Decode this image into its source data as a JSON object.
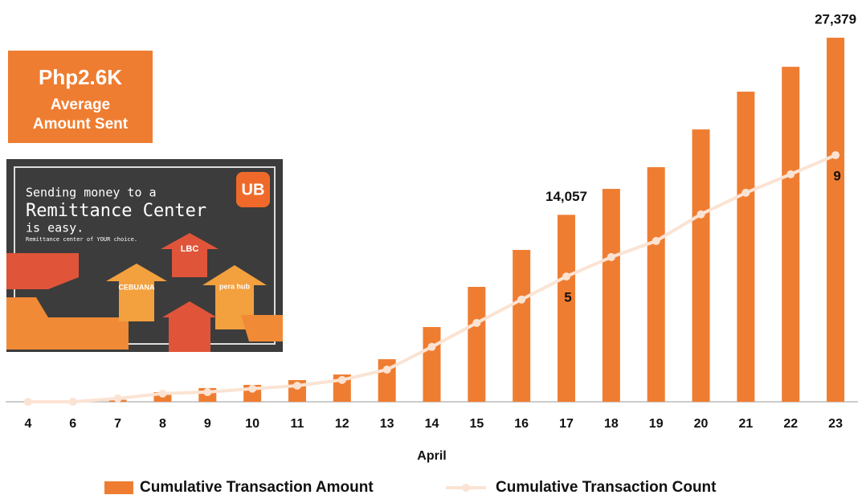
{
  "chart_data": {
    "type": "bar",
    "categories": [
      "4",
      "6",
      "7",
      "8",
      "9",
      "10",
      "11",
      "12",
      "13",
      "14",
      "15",
      "16",
      "17",
      "18",
      "19",
      "20",
      "21",
      "22",
      "23"
    ],
    "xlabel": "April",
    "series": [
      {
        "name": "Cumulative Transaction Amount",
        "color": "#ef7d31",
        "type": "bar",
        "values": [
          0,
          0,
          150,
          725,
          1030,
          1270,
          1630,
          2050,
          3200,
          5620,
          8640,
          11420,
          14057,
          16010,
          17640,
          20480,
          23320,
          25190,
          27379
        ],
        "value_labels": [
          null,
          null,
          null,
          null,
          null,
          null,
          null,
          null,
          null,
          null,
          null,
          null,
          "14,057",
          null,
          null,
          null,
          null,
          null,
          "27,379"
        ]
      },
      {
        "name": "Cumulative Transaction Count",
        "color": "#fbe3d3",
        "type": "line",
        "axis": "y2",
        "values": [
          0.87,
          0.87,
          0.98,
          1.14,
          1.19,
          1.3,
          1.4,
          1.59,
          1.93,
          2.68,
          3.47,
          4.24,
          5,
          5.64,
          6.17,
          7.05,
          7.76,
          8.37,
          9
        ],
        "value_labels": [
          null,
          null,
          null,
          null,
          null,
          null,
          null,
          null,
          null,
          null,
          null,
          null,
          "5",
          null,
          null,
          null,
          null,
          null,
          "9"
        ]
      }
    ],
    "ylim": [
      0,
      28400
    ],
    "y2lim": [
      0.87,
      13.32
    ],
    "legend": "bottom"
  },
  "badge": {
    "amount": "Php2.6K",
    "line1": "Average",
    "line2": "Amount Sent"
  },
  "ad": {
    "headline1": "Sending money to a",
    "headline2": "Remittance Center",
    "headline3": "is easy.",
    "tagline": "Remittance center of YOUR choice.",
    "logo": "UB",
    "brand1": "LBC",
    "brand2": "CEBUANA",
    "brand3": "pera hub"
  }
}
